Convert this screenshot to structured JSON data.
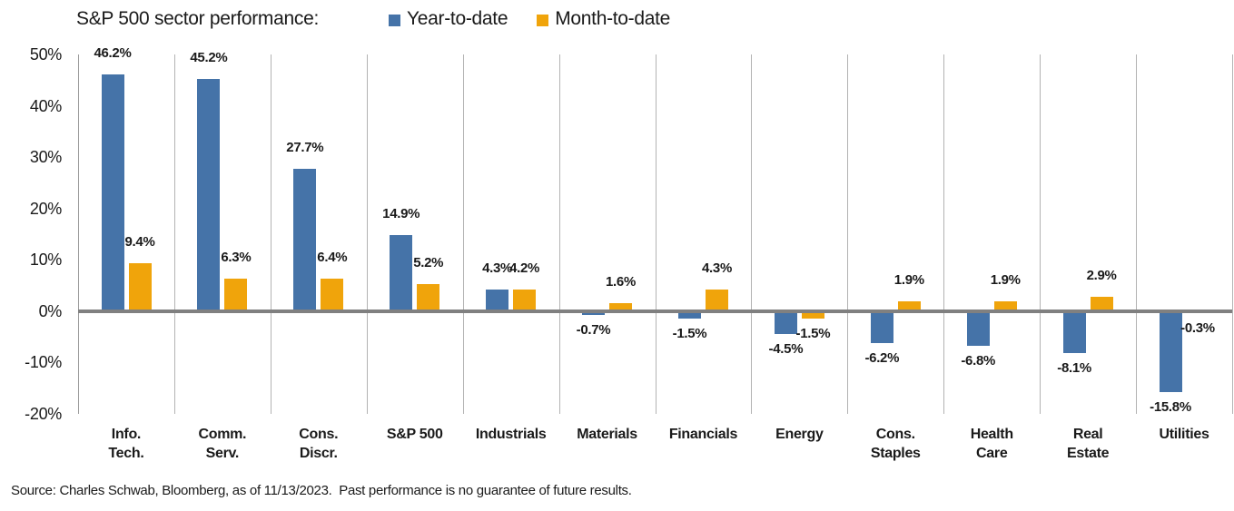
{
  "header": {
    "title": "S&P 500 sector performance:"
  },
  "footer": {
    "source": "Source: Charles Schwab, Bloomberg, as of 11/13/2023.  Past performance is no guarantee of future results."
  },
  "colors": {
    "ytd_blue": "#4573A8",
    "mtd_orange": "#F0A40B",
    "zero_line": "#808080",
    "gridline": "#B3B3B3",
    "text": "#1A1A1A"
  },
  "chart_data": {
    "type": "bar",
    "title": "S&P 500 sector performance:",
    "categories": [
      "Info.\nTech.",
      "Comm.\nServ.",
      "Cons.\nDiscr.",
      "S&P 500",
      "Industrials",
      "Materials",
      "Financials",
      "Energy",
      "Cons.\nStaples",
      "Health\nCare",
      "Real\nEstate",
      "Utilities"
    ],
    "series": [
      {
        "name": "Year-to-date",
        "color": "#4573A8",
        "values": [
          46.2,
          45.2,
          27.7,
          14.9,
          4.3,
          -0.7,
          -1.5,
          -4.5,
          -6.2,
          -6.8,
          -8.1,
          -15.8
        ]
      },
      {
        "name": "Month-to-date",
        "color": "#F0A40B",
        "values": [
          9.4,
          6.3,
          6.4,
          5.2,
          4.2,
          1.6,
          4.3,
          -1.5,
          1.9,
          1.9,
          2.9,
          -0.3
        ]
      }
    ],
    "value_label_format": "one decimal + %",
    "y_tick_labels": [
      "50%",
      "40%",
      "30%",
      "20%",
      "10%",
      "0%",
      "-10%",
      "-20%"
    ],
    "ylim": [
      -20,
      50
    ],
    "y_tick_step": 10,
    "xlabel": "",
    "ylabel": "",
    "grid": "vertical category separators only, no horizontal gridlines",
    "legend_position": "top, inline after title"
  }
}
